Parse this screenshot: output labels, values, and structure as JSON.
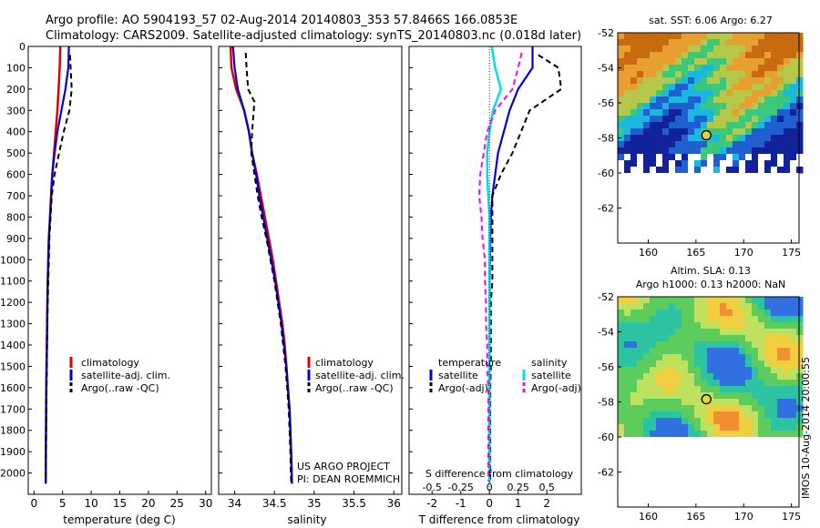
{
  "header": {
    "line1": "Argo profile: AO 5904193_57 02-Aug-2014 20140803_353 57.8466S 166.0853E",
    "line2": "Climatology: CARS2009. Satellite-adjusted climatology: synTS_20140803.nc (0.018d later)"
  },
  "colors": {
    "climatology": "#e00000",
    "satellite": "#0000dd",
    "argo": "#000000",
    "sat_s": "#00e0e0",
    "argo_s": "#ff00ff"
  },
  "chart_data": [
    {
      "type": "line",
      "title": "",
      "xlabel": "temperature (deg C)",
      "ylabel": "",
      "xlim": [
        -1,
        31
      ],
      "ylim": [
        2100,
        0
      ],
      "xticks": [
        0,
        5,
        10,
        15,
        20,
        25,
        30
      ],
      "yticks": [
        0,
        100,
        200,
        300,
        400,
        500,
        600,
        700,
        800,
        900,
        1000,
        1100,
        1200,
        1300,
        1400,
        1500,
        1600,
        1700,
        1800,
        1900,
        2000
      ],
      "legend": [
        "climatology",
        "satellite-adj. clim.",
        "Argo(..raw -QC)"
      ],
      "series": [
        {
          "name": "climatology",
          "x": [
            4.6,
            4.5,
            4.3,
            4.1,
            3.8,
            3.5,
            3.2,
            3.0,
            2.8,
            2.6,
            2.5,
            2.4,
            2.35,
            2.3,
            2.25,
            2.2,
            2.15,
            2.12,
            2.1,
            2.08,
            2.05
          ],
          "y": [
            0,
            100,
            200,
            300,
            400,
            500,
            600,
            700,
            800,
            900,
            1000,
            1100,
            1200,
            1300,
            1400,
            1500,
            1600,
            1700,
            1800,
            1900,
            2050
          ]
        },
        {
          "name": "satellite-adj. clim.",
          "x": [
            6.1,
            6.0,
            5.5,
            4.8,
            4.1,
            3.6,
            3.2,
            3.0,
            2.8,
            2.6,
            2.5,
            2.4,
            2.35,
            2.3,
            2.25,
            2.2,
            2.15,
            2.12,
            2.1,
            2.08,
            2.05
          ],
          "y": [
            0,
            100,
            200,
            300,
            400,
            500,
            600,
            700,
            800,
            900,
            1000,
            1100,
            1200,
            1300,
            1400,
            1500,
            1600,
            1700,
            1800,
            1900,
            2050
          ]
        },
        {
          "name": "Argo(..raw -QC)",
          "x": [
            6.3,
            6.4,
            6.6,
            6.2,
            5.2,
            4.4,
            3.6,
            3.1,
            2.9,
            2.7,
            2.6,
            2.5,
            2.4,
            2.35,
            2.3,
            2.25,
            2.2,
            2.15,
            2.12,
            2.1,
            2.08
          ],
          "y": [
            40,
            100,
            200,
            300,
            400,
            500,
            600,
            700,
            800,
            900,
            1000,
            1100,
            1200,
            1300,
            1400,
            1500,
            1600,
            1700,
            1800,
            1900,
            2040
          ]
        }
      ]
    },
    {
      "type": "line",
      "title": "",
      "xlabel": "salinity",
      "ylabel": "",
      "xlim": [
        33.8,
        36.1
      ],
      "ylim": [
        2100,
        0
      ],
      "xticks": [
        34,
        34.5,
        35,
        35.5,
        36
      ],
      "legend": [
        "climatology",
        "satellite-adj. clim.",
        "Argo(..raw -QC)"
      ],
      "annotation": [
        "US ARGO PROJECT",
        "PI: DEAN ROEMMICH"
      ],
      "series": [
        {
          "name": "climatology",
          "x": [
            33.95,
            33.96,
            34.02,
            34.12,
            34.18,
            34.22,
            34.28,
            34.33,
            34.38,
            34.43,
            34.48,
            34.52,
            34.56,
            34.6,
            34.63,
            34.65,
            34.67,
            34.69,
            34.7,
            34.71,
            34.72
          ],
          "y": [
            0,
            100,
            200,
            300,
            400,
            500,
            600,
            700,
            800,
            900,
            1000,
            1100,
            1200,
            1300,
            1400,
            1500,
            1600,
            1700,
            1800,
            1900,
            2050
          ]
        },
        {
          "name": "satellite-adj. clim.",
          "x": [
            33.98,
            34.0,
            34.04,
            34.12,
            34.18,
            34.22,
            34.27,
            34.31,
            34.36,
            34.41,
            34.46,
            34.51,
            34.55,
            34.59,
            34.62,
            34.65,
            34.67,
            34.69,
            34.7,
            34.71,
            34.72
          ],
          "y": [
            0,
            100,
            200,
            300,
            400,
            500,
            600,
            700,
            800,
            900,
            1000,
            1100,
            1200,
            1300,
            1400,
            1500,
            1600,
            1700,
            1800,
            1900,
            2050
          ]
        },
        {
          "name": "Argo(..raw -QC)",
          "x": [
            34.14,
            34.15,
            34.17,
            34.25,
            34.22,
            34.21,
            34.25,
            34.29,
            34.34,
            34.4,
            34.45,
            34.5,
            34.54,
            34.58,
            34.61,
            34.64,
            34.66,
            34.68,
            34.69,
            34.7,
            34.71
          ],
          "y": [
            30,
            100,
            200,
            260,
            400,
            500,
            600,
            700,
            800,
            900,
            1000,
            1100,
            1200,
            1300,
            1400,
            1500,
            1600,
            1700,
            1800,
            1900,
            2040
          ]
        }
      ]
    },
    {
      "type": "line",
      "title": "",
      "xlabel": "T difference from climatology",
      "xlabel_top": "S difference from climatology",
      "ylabel": "",
      "xlim": [
        -2.8,
        3.2
      ],
      "ylim": [
        2100,
        0
      ],
      "xticks": [
        -2,
        -1,
        0,
        1,
        2
      ],
      "xticks_s": [
        -0.5,
        -0.25,
        0,
        0.25,
        0.5
      ],
      "legend": {
        "temperature": [
          "satellite",
          "Argo(-adj)"
        ],
        "salinity": [
          "satellite",
          "Argo(-adj)"
        ]
      },
      "legend_headers": [
        "temperature",
        "salinity"
      ],
      "series": [
        {
          "name": "temperature satellite",
          "x": [
            1.5,
            1.5,
            1.0,
            0.7,
            0.5,
            0.3,
            0.2,
            0.1,
            0.05,
            0.03,
            0.02,
            0.01,
            0.01,
            0.0,
            0.0,
            0.0,
            0.0,
            0.0,
            0.0,
            0.0,
            0.0
          ],
          "y": [
            0,
            100,
            200,
            300,
            400,
            500,
            600,
            700,
            800,
            900,
            1000,
            1100,
            1200,
            1300,
            1400,
            1500,
            1600,
            1700,
            1800,
            1900,
            2050
          ]
        },
        {
          "name": "temperature Argo(-adj)",
          "x": [
            1.7,
            2.4,
            2.5,
            1.4,
            1.1,
            0.8,
            0.4,
            0.1,
            0.1,
            0.1,
            0.1,
            0.1,
            0.05,
            0.05,
            0.05,
            0.05,
            0.03,
            0.03,
            0.03,
            0.03,
            0.03
          ],
          "y": [
            40,
            100,
            200,
            300,
            400,
            500,
            600,
            700,
            800,
            900,
            1000,
            1100,
            1200,
            1300,
            1400,
            1500,
            1600,
            1700,
            1800,
            1900,
            2040
          ]
        },
        {
          "name": "salinity satellite",
          "x": [
            0.02,
            0.05,
            0.1,
            0.03,
            0.0,
            -0.02,
            -0.02,
            -0.01,
            0.0,
            0.0,
            0.0,
            0.0,
            0.0,
            0.0,
            0.0,
            0.0,
            0.0,
            0.0,
            0.0,
            0.0,
            0.0
          ],
          "y": [
            0,
            100,
            200,
            300,
            400,
            500,
            600,
            700,
            800,
            900,
            1000,
            1100,
            1200,
            1300,
            1400,
            1500,
            1600,
            1700,
            1800,
            1900,
            2050
          ]
        },
        {
          "name": "salinity Argo(-adj)",
          "x": [
            0.28,
            0.25,
            0.2,
            0.05,
            -0.02,
            -0.05,
            -0.08,
            -0.09,
            -0.07,
            -0.06,
            -0.04,
            -0.04,
            -0.03,
            -0.03,
            -0.02,
            -0.02,
            -0.01,
            -0.01,
            -0.01,
            -0.01,
            -0.01
          ],
          "y": [
            30,
            100,
            200,
            300,
            400,
            500,
            600,
            700,
            800,
            900,
            1000,
            1100,
            1200,
            1300,
            1400,
            1500,
            1600,
            1700,
            1800,
            1900,
            2040
          ]
        }
      ]
    },
    {
      "type": "heatmap",
      "title": "sat. SST: 6.06  Argo: 6.27",
      "xlabel": "",
      "ylabel": "",
      "xlim": [
        156.8,
        175.8
      ],
      "ylim": [
        -64,
        -52
      ],
      "xticks": [
        160,
        165,
        170,
        175
      ],
      "yticks": [
        -52,
        -54,
        -56,
        -58,
        -60,
        -62
      ],
      "data_extent_lat": [
        -60,
        -52
      ],
      "marker": {
        "lon": 166.0853,
        "lat": -57.8466
      }
    },
    {
      "type": "heatmap",
      "title": "Altim. SLA: 0.13",
      "subtitle": "Argo h1000: 0.13  h2000: NaN",
      "xlabel": "",
      "ylabel": "",
      "xlim": [
        156.8,
        175.8
      ],
      "ylim": [
        -64,
        -52
      ],
      "xticks": [
        160,
        165,
        170,
        175
      ],
      "yticks": [
        -52,
        -54,
        -56,
        -58,
        -60,
        -62
      ],
      "data_extent_lat": [
        -60,
        -52
      ],
      "marker": {
        "lon": 166.0853,
        "lat": -57.8466
      }
    }
  ],
  "footer": {
    "stamp": "IMOS 10-Aug-2014 20:00:55"
  }
}
